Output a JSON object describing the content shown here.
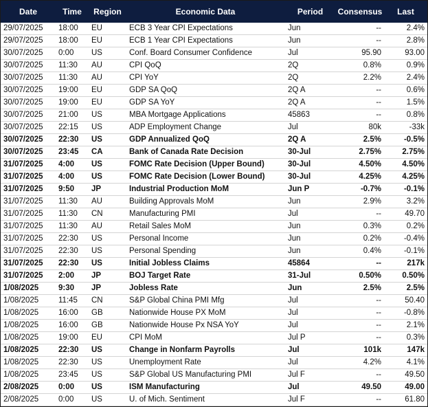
{
  "table": {
    "header": [
      "Date",
      "Time",
      "Region",
      "Economic Data",
      "Period",
      "Consensus",
      "Last"
    ],
    "rows": [
      {
        "cells": [
          "29/07/2025",
          "18:00",
          "EU",
          "ECB 3 Year CPI Expectations",
          "Jun",
          "--",
          "2.4%"
        ],
        "bold": false
      },
      {
        "cells": [
          "29/07/2025",
          "18:00",
          "EU",
          "ECB 1 Year CPI Expectations",
          "Jun",
          "--",
          "2.8%"
        ],
        "bold": false
      },
      {
        "cells": [
          "30/07/2025",
          "0:00",
          "US",
          "Conf. Board Consumer Confidence",
          "Jul",
          "95.90",
          "93.00"
        ],
        "bold": false
      },
      {
        "cells": [
          "30/07/2025",
          "11:30",
          "AU",
          "CPI QoQ",
          "2Q",
          "0.8%",
          "0.9%"
        ],
        "bold": false
      },
      {
        "cells": [
          "30/07/2025",
          "11:30",
          "AU",
          "CPI YoY",
          "2Q",
          "2.2%",
          "2.4%"
        ],
        "bold": false
      },
      {
        "cells": [
          "30/07/2025",
          "19:00",
          "EU",
          "GDP SA QoQ",
          "2Q A",
          "--",
          "0.6%"
        ],
        "bold": false
      },
      {
        "cells": [
          "30/07/2025",
          "19:00",
          "EU",
          "GDP SA YoY",
          "2Q A",
          "--",
          "1.5%"
        ],
        "bold": false
      },
      {
        "cells": [
          "30/07/2025",
          "21:00",
          "US",
          "MBA Mortgage Applications",
          "45863",
          "--",
          "0.8%"
        ],
        "bold": false
      },
      {
        "cells": [
          "30/07/2025",
          "22:15",
          "US",
          "ADP Employment Change",
          "Jul",
          "80k",
          "-33k"
        ],
        "bold": false
      },
      {
        "cells": [
          "30/07/2025",
          "22:30",
          "US",
          "GDP Annualized QoQ",
          "2Q A",
          "2.5%",
          "-0.5%"
        ],
        "bold": true
      },
      {
        "cells": [
          "30/07/2025",
          "23:45",
          "CA",
          "Bank of Canada Rate Decision",
          "30-Jul",
          "2.75%",
          "2.75%"
        ],
        "bold": true
      },
      {
        "cells": [
          "31/07/2025",
          "4:00",
          "US",
          "FOMC Rate Decision (Upper Bound)",
          "30-Jul",
          "4.50%",
          "4.50%"
        ],
        "bold": true
      },
      {
        "cells": [
          "31/07/2025",
          "4:00",
          "US",
          "FOMC Rate Decision (Lower Bound)",
          "30-Jul",
          "4.25%",
          "4.25%"
        ],
        "bold": true
      },
      {
        "cells": [
          "31/07/2025",
          "9:50",
          "JP",
          "Industrial Production MoM",
          "Jun P",
          "-0.7%",
          "-0.1%"
        ],
        "bold": true
      },
      {
        "cells": [
          "31/07/2025",
          "11:30",
          "AU",
          "Building Approvals MoM",
          "Jun",
          "2.9%",
          "3.2%"
        ],
        "bold": false
      },
      {
        "cells": [
          "31/07/2025",
          "11:30",
          "CN",
          "Manufacturing PMI",
          "Jul",
          "--",
          "49.70"
        ],
        "bold": false
      },
      {
        "cells": [
          "31/07/2025",
          "11:30",
          "AU",
          "Retail Sales MoM",
          "Jun",
          "0.3%",
          "0.2%"
        ],
        "bold": false
      },
      {
        "cells": [
          "31/07/2025",
          "22:30",
          "US",
          "Personal Income",
          "Jun",
          "0.2%",
          "-0.4%"
        ],
        "bold": false
      },
      {
        "cells": [
          "31/07/2025",
          "22:30",
          "US",
          "Personal Spending",
          "Jun",
          "0.4%",
          "-0.1%"
        ],
        "bold": false
      },
      {
        "cells": [
          "31/07/2025",
          "22:30",
          "US",
          "Initial Jobless Claims",
          "45864",
          "--",
          "217k"
        ],
        "bold": true
      },
      {
        "cells": [
          "31/07/2025",
          "2:00",
          "JP",
          "BOJ Target Rate",
          "31-Jul",
          "0.50%",
          "0.50%"
        ],
        "bold": true
      },
      {
        "cells": [
          "1/08/2025",
          "9:30",
          "JP",
          "Jobless Rate",
          "Jun",
          "2.5%",
          "2.5%"
        ],
        "bold": true
      },
      {
        "cells": [
          "1/08/2025",
          "11:45",
          "CN",
          "S&P Global China PMI Mfg",
          "Jul",
          "--",
          "50.40"
        ],
        "bold": false
      },
      {
        "cells": [
          "1/08/2025",
          "16:00",
          "GB",
          "Nationwide House PX MoM",
          "Jul",
          "--",
          "-0.8%"
        ],
        "bold": false
      },
      {
        "cells": [
          "1/08/2025",
          "16:00",
          "GB",
          "Nationwide House Px NSA YoY",
          "Jul",
          "--",
          "2.1%"
        ],
        "bold": false
      },
      {
        "cells": [
          "1/08/2025",
          "19:00",
          "EU",
          "CPI MoM",
          "Jul P",
          "--",
          "0.3%"
        ],
        "bold": false
      },
      {
        "cells": [
          "1/08/2025",
          "22:30",
          "US",
          "Change in Nonfarm Payrolls",
          "Jul",
          "101k",
          "147k"
        ],
        "bold": true
      },
      {
        "cells": [
          "1/08/2025",
          "22:30",
          "US",
          "Unemployment Rate",
          "Jul",
          "4.2%",
          "4.1%"
        ],
        "bold": false
      },
      {
        "cells": [
          "1/08/2025",
          "23:45",
          "US",
          "S&P Global US Manufacturing PMI",
          "Jul F",
          "--",
          "49.50"
        ],
        "bold": false
      },
      {
        "cells": [
          "2/08/2025",
          "0:00",
          "US",
          "ISM Manufacturing",
          "Jul",
          "49.50",
          "49.00"
        ],
        "bold": true
      },
      {
        "cells": [
          "2/08/2025",
          "0:00",
          "US",
          "U. of Mich. Sentiment",
          "Jul F",
          "--",
          "61.80"
        ],
        "bold": false
      }
    ]
  }
}
